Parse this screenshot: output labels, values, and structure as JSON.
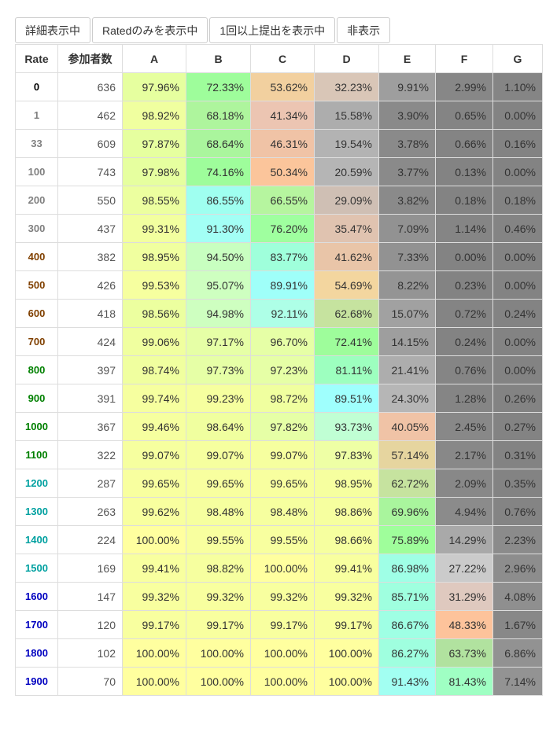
{
  "toolbar": {
    "buttons": [
      "詳細表示中",
      "Ratedのみを表示中",
      "1回以上提出を表示中",
      "非表示"
    ]
  },
  "table": {
    "columns": [
      "Rate",
      "参加者数",
      "A",
      "B",
      "C",
      "D",
      "E",
      "F",
      "G"
    ],
    "rows": [
      {
        "rate": "0",
        "count": "636",
        "values": [
          "97.96%",
          "72.33%",
          "53.62%",
          "32.23%",
          "9.91%",
          "2.99%",
          "1.10%"
        ]
      },
      {
        "rate": "1",
        "count": "462",
        "values": [
          "98.92%",
          "68.18%",
          "41.34%",
          "15.58%",
          "3.90%",
          "0.65%",
          "0.00%"
        ]
      },
      {
        "rate": "33",
        "count": "609",
        "values": [
          "97.87%",
          "68.64%",
          "46.31%",
          "19.54%",
          "3.78%",
          "0.66%",
          "0.16%"
        ]
      },
      {
        "rate": "100",
        "count": "743",
        "values": [
          "97.98%",
          "74.16%",
          "50.34%",
          "20.59%",
          "3.77%",
          "0.13%",
          "0.00%"
        ]
      },
      {
        "rate": "200",
        "count": "550",
        "values": [
          "98.55%",
          "86.55%",
          "66.55%",
          "29.09%",
          "3.82%",
          "0.18%",
          "0.18%"
        ]
      },
      {
        "rate": "300",
        "count": "437",
        "values": [
          "99.31%",
          "91.30%",
          "76.20%",
          "35.47%",
          "7.09%",
          "1.14%",
          "0.46%"
        ]
      },
      {
        "rate": "400",
        "count": "382",
        "values": [
          "98.95%",
          "94.50%",
          "83.77%",
          "41.62%",
          "7.33%",
          "0.00%",
          "0.00%"
        ]
      },
      {
        "rate": "500",
        "count": "426",
        "values": [
          "99.53%",
          "95.07%",
          "89.91%",
          "54.69%",
          "8.22%",
          "0.23%",
          "0.00%"
        ]
      },
      {
        "rate": "600",
        "count": "418",
        "values": [
          "98.56%",
          "94.98%",
          "92.11%",
          "62.68%",
          "15.07%",
          "0.72%",
          "0.24%"
        ]
      },
      {
        "rate": "700",
        "count": "424",
        "values": [
          "99.06%",
          "97.17%",
          "96.70%",
          "72.41%",
          "14.15%",
          "0.24%",
          "0.00%"
        ]
      },
      {
        "rate": "800",
        "count": "397",
        "values": [
          "98.74%",
          "97.73%",
          "97.23%",
          "81.11%",
          "21.41%",
          "0.76%",
          "0.00%"
        ]
      },
      {
        "rate": "900",
        "count": "391",
        "values": [
          "99.74%",
          "99.23%",
          "98.72%",
          "89.51%",
          "24.30%",
          "1.28%",
          "0.26%"
        ]
      },
      {
        "rate": "1000",
        "count": "367",
        "values": [
          "99.46%",
          "98.64%",
          "97.82%",
          "93.73%",
          "40.05%",
          "2.45%",
          "0.27%"
        ]
      },
      {
        "rate": "1100",
        "count": "322",
        "values": [
          "99.07%",
          "99.07%",
          "99.07%",
          "97.83%",
          "57.14%",
          "2.17%",
          "0.31%"
        ]
      },
      {
        "rate": "1200",
        "count": "287",
        "values": [
          "99.65%",
          "99.65%",
          "99.65%",
          "98.95%",
          "62.72%",
          "2.09%",
          "0.35%"
        ]
      },
      {
        "rate": "1300",
        "count": "263",
        "values": [
          "99.62%",
          "98.48%",
          "98.48%",
          "98.86%",
          "69.96%",
          "4.94%",
          "0.76%"
        ]
      },
      {
        "rate": "1400",
        "count": "224",
        "values": [
          "100.00%",
          "99.55%",
          "99.55%",
          "98.66%",
          "75.89%",
          "14.29%",
          "2.23%"
        ]
      },
      {
        "rate": "1500",
        "count": "169",
        "values": [
          "99.41%",
          "98.82%",
          "100.00%",
          "99.41%",
          "86.98%",
          "27.22%",
          "2.96%"
        ]
      },
      {
        "rate": "1600",
        "count": "147",
        "values": [
          "99.32%",
          "99.32%",
          "99.32%",
          "99.32%",
          "85.71%",
          "31.29%",
          "4.08%"
        ]
      },
      {
        "rate": "1700",
        "count": "120",
        "values": [
          "99.17%",
          "99.17%",
          "99.17%",
          "99.17%",
          "86.67%",
          "48.33%",
          "1.67%"
        ]
      },
      {
        "rate": "1800",
        "count": "102",
        "values": [
          "100.00%",
          "100.00%",
          "100.00%",
          "100.00%",
          "86.27%",
          "63.73%",
          "6.86%"
        ]
      },
      {
        "rate": "1900",
        "count": "70",
        "values": [
          "100.00%",
          "100.00%",
          "100.00%",
          "100.00%",
          "91.43%",
          "81.43%",
          "7.14%"
        ]
      }
    ]
  },
  "colors": {
    "rate_text": {
      "0": "#000000",
      "1": "#808080",
      "33": "#808080",
      "100": "#808080",
      "200": "#808080",
      "300": "#808080",
      "400": "#804000",
      "500": "#804000",
      "600": "#804000",
      "700": "#804000",
      "800": "#008000",
      "900": "#008000",
      "1000": "#008000",
      "1100": "#008000",
      "1200": "#00A0A0",
      "1300": "#00A0A0",
      "1400": "#00A0A0",
      "1500": "#00A0A0",
      "1600": "#0000C0",
      "1700": "#0000C0",
      "1800": "#0000C0",
      "1900": "#0000C0"
    },
    "cells": [
      [
        "#e6ff9f",
        "#9efd9b",
        "#f2d09f",
        "#d9c6b7",
        "#9e9e9e",
        "#878787",
        "#858585"
      ],
      [
        "#f0ff9f",
        "#aef59d",
        "#ecc5b2",
        "#adadad",
        "#8a8a8a",
        "#848484",
        "#838383"
      ],
      [
        "#e6ff9f",
        "#aaf59d",
        "#f0c3a6",
        "#b3b3b3",
        "#8a8a8a",
        "#848484",
        "#838383"
      ],
      [
        "#e6ff9f",
        "#9efd9b",
        "#fbc59b",
        "#b5b5b5",
        "#8a8a8a",
        "#838383",
        "#838383"
      ],
      [
        "#ecff9f",
        "#9ffff0",
        "#b6f59f",
        "#cfbfb4",
        "#8a8a8a",
        "#838383",
        "#838383"
      ],
      [
        "#f2ff9f",
        "#a3fff5",
        "#9fff9f",
        "#e0c3b0",
        "#929292",
        "#858585",
        "#848484"
      ],
      [
        "#f0ff9f",
        "#c8ffc0",
        "#9fffdb",
        "#e9c5a8",
        "#929292",
        "#838383",
        "#838383"
      ],
      [
        "#f6ff9f",
        "#ceffc0",
        "#9ffff9",
        "#f3d69f",
        "#949494",
        "#838383",
        "#838383"
      ],
      [
        "#ecff9f",
        "#ceffc0",
        "#aeffe7",
        "#c6e39f",
        "#a1a1a1",
        "#848484",
        "#838383"
      ],
      [
        "#f0ff9f",
        "#e6ffa6",
        "#e6ffa6",
        "#9efd9b",
        "#9e9e9e",
        "#838383",
        "#838383"
      ],
      [
        "#f0ff9f",
        "#e6ffa6",
        "#e6ffa6",
        "#9dffbf",
        "#adadad",
        "#858585",
        "#838383"
      ],
      [
        "#f6ff9f",
        "#f6ff9f",
        "#f0ff9f",
        "#9ffffd",
        "#b6b6b6",
        "#858585",
        "#838383"
      ],
      [
        "#f6ff9f",
        "#f0ff9f",
        "#e6ffa6",
        "#c0ffd4",
        "#f0c3a6",
        "#888888",
        "#838383"
      ],
      [
        "#f6ff9f",
        "#f6ff9f",
        "#f6ff9f",
        "#eeffa5",
        "#e6d59f",
        "#888888",
        "#838383"
      ],
      [
        "#f8ff9f",
        "#f8ff9f",
        "#f8ff9f",
        "#f6ff9f",
        "#c6e39f",
        "#888888",
        "#838383"
      ],
      [
        "#f8ff9f",
        "#f6ff9f",
        "#f6ff9f",
        "#f6ff9f",
        "#a9f59d",
        "#8b8b8b",
        "#848484"
      ],
      [
        "#ffff9f",
        "#f8ff9f",
        "#f8ff9f",
        "#f6ff9f",
        "#9ffe9b",
        "#a9a9a9",
        "#8b8b8b"
      ],
      [
        "#f8ff9f",
        "#f6ff9f",
        "#ffff9f",
        "#f8ff9f",
        "#9fffe6",
        "#cbcbcb",
        "#8d8d8d"
      ],
      [
        "#f8ff9f",
        "#f8ff9f",
        "#f8ff9f",
        "#f8ff9f",
        "#9fffdf",
        "#dfc9bf",
        "#8f8f8f"
      ],
      [
        "#f8ff9f",
        "#f8ff9f",
        "#f8ff9f",
        "#f8ff9f",
        "#9fffe4",
        "#fdc39b",
        "#888888"
      ],
      [
        "#ffff9f",
        "#ffff9f",
        "#ffff9f",
        "#ffff9f",
        "#9fffdf",
        "#b1e29f",
        "#929292"
      ],
      [
        "#ffff9f",
        "#ffff9f",
        "#ffff9f",
        "#ffff9f",
        "#a2fff2",
        "#9fffc3",
        "#939393"
      ]
    ]
  }
}
